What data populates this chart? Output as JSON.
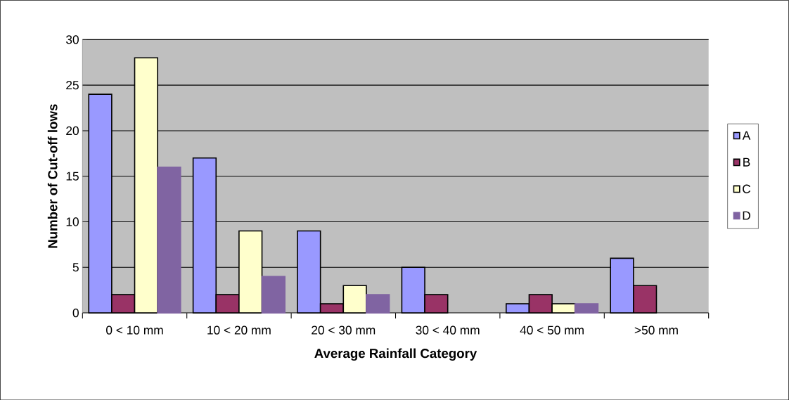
{
  "chart_data": {
    "type": "bar",
    "xlabel": "Average Rainfall Category",
    "ylabel": "Number of Cut-off lows",
    "categories": [
      "0 < 10 mm",
      "10 < 20 mm",
      "20 < 30 mm",
      "30 < 40 mm",
      "40 < 50 mm",
      ">50 mm"
    ],
    "series": [
      {
        "name": "A",
        "color": "#9999ff",
        "values": [
          24,
          17,
          9,
          5,
          1,
          6
        ]
      },
      {
        "name": "B",
        "color": "#993366",
        "values": [
          2,
          2,
          1,
          2,
          2,
          3
        ]
      },
      {
        "name": "C",
        "color": "#ffffcc",
        "values": [
          28,
          9,
          3,
          null,
          1,
          null
        ]
      },
      {
        "name": "D",
        "color": "#8064a2",
        "values": [
          16,
          4,
          2,
          null,
          1,
          null
        ]
      }
    ],
    "ylim": [
      0,
      30
    ],
    "yticks": [
      0,
      5,
      10,
      15,
      20,
      25,
      30
    ],
    "grid": "y",
    "legend": "right"
  }
}
